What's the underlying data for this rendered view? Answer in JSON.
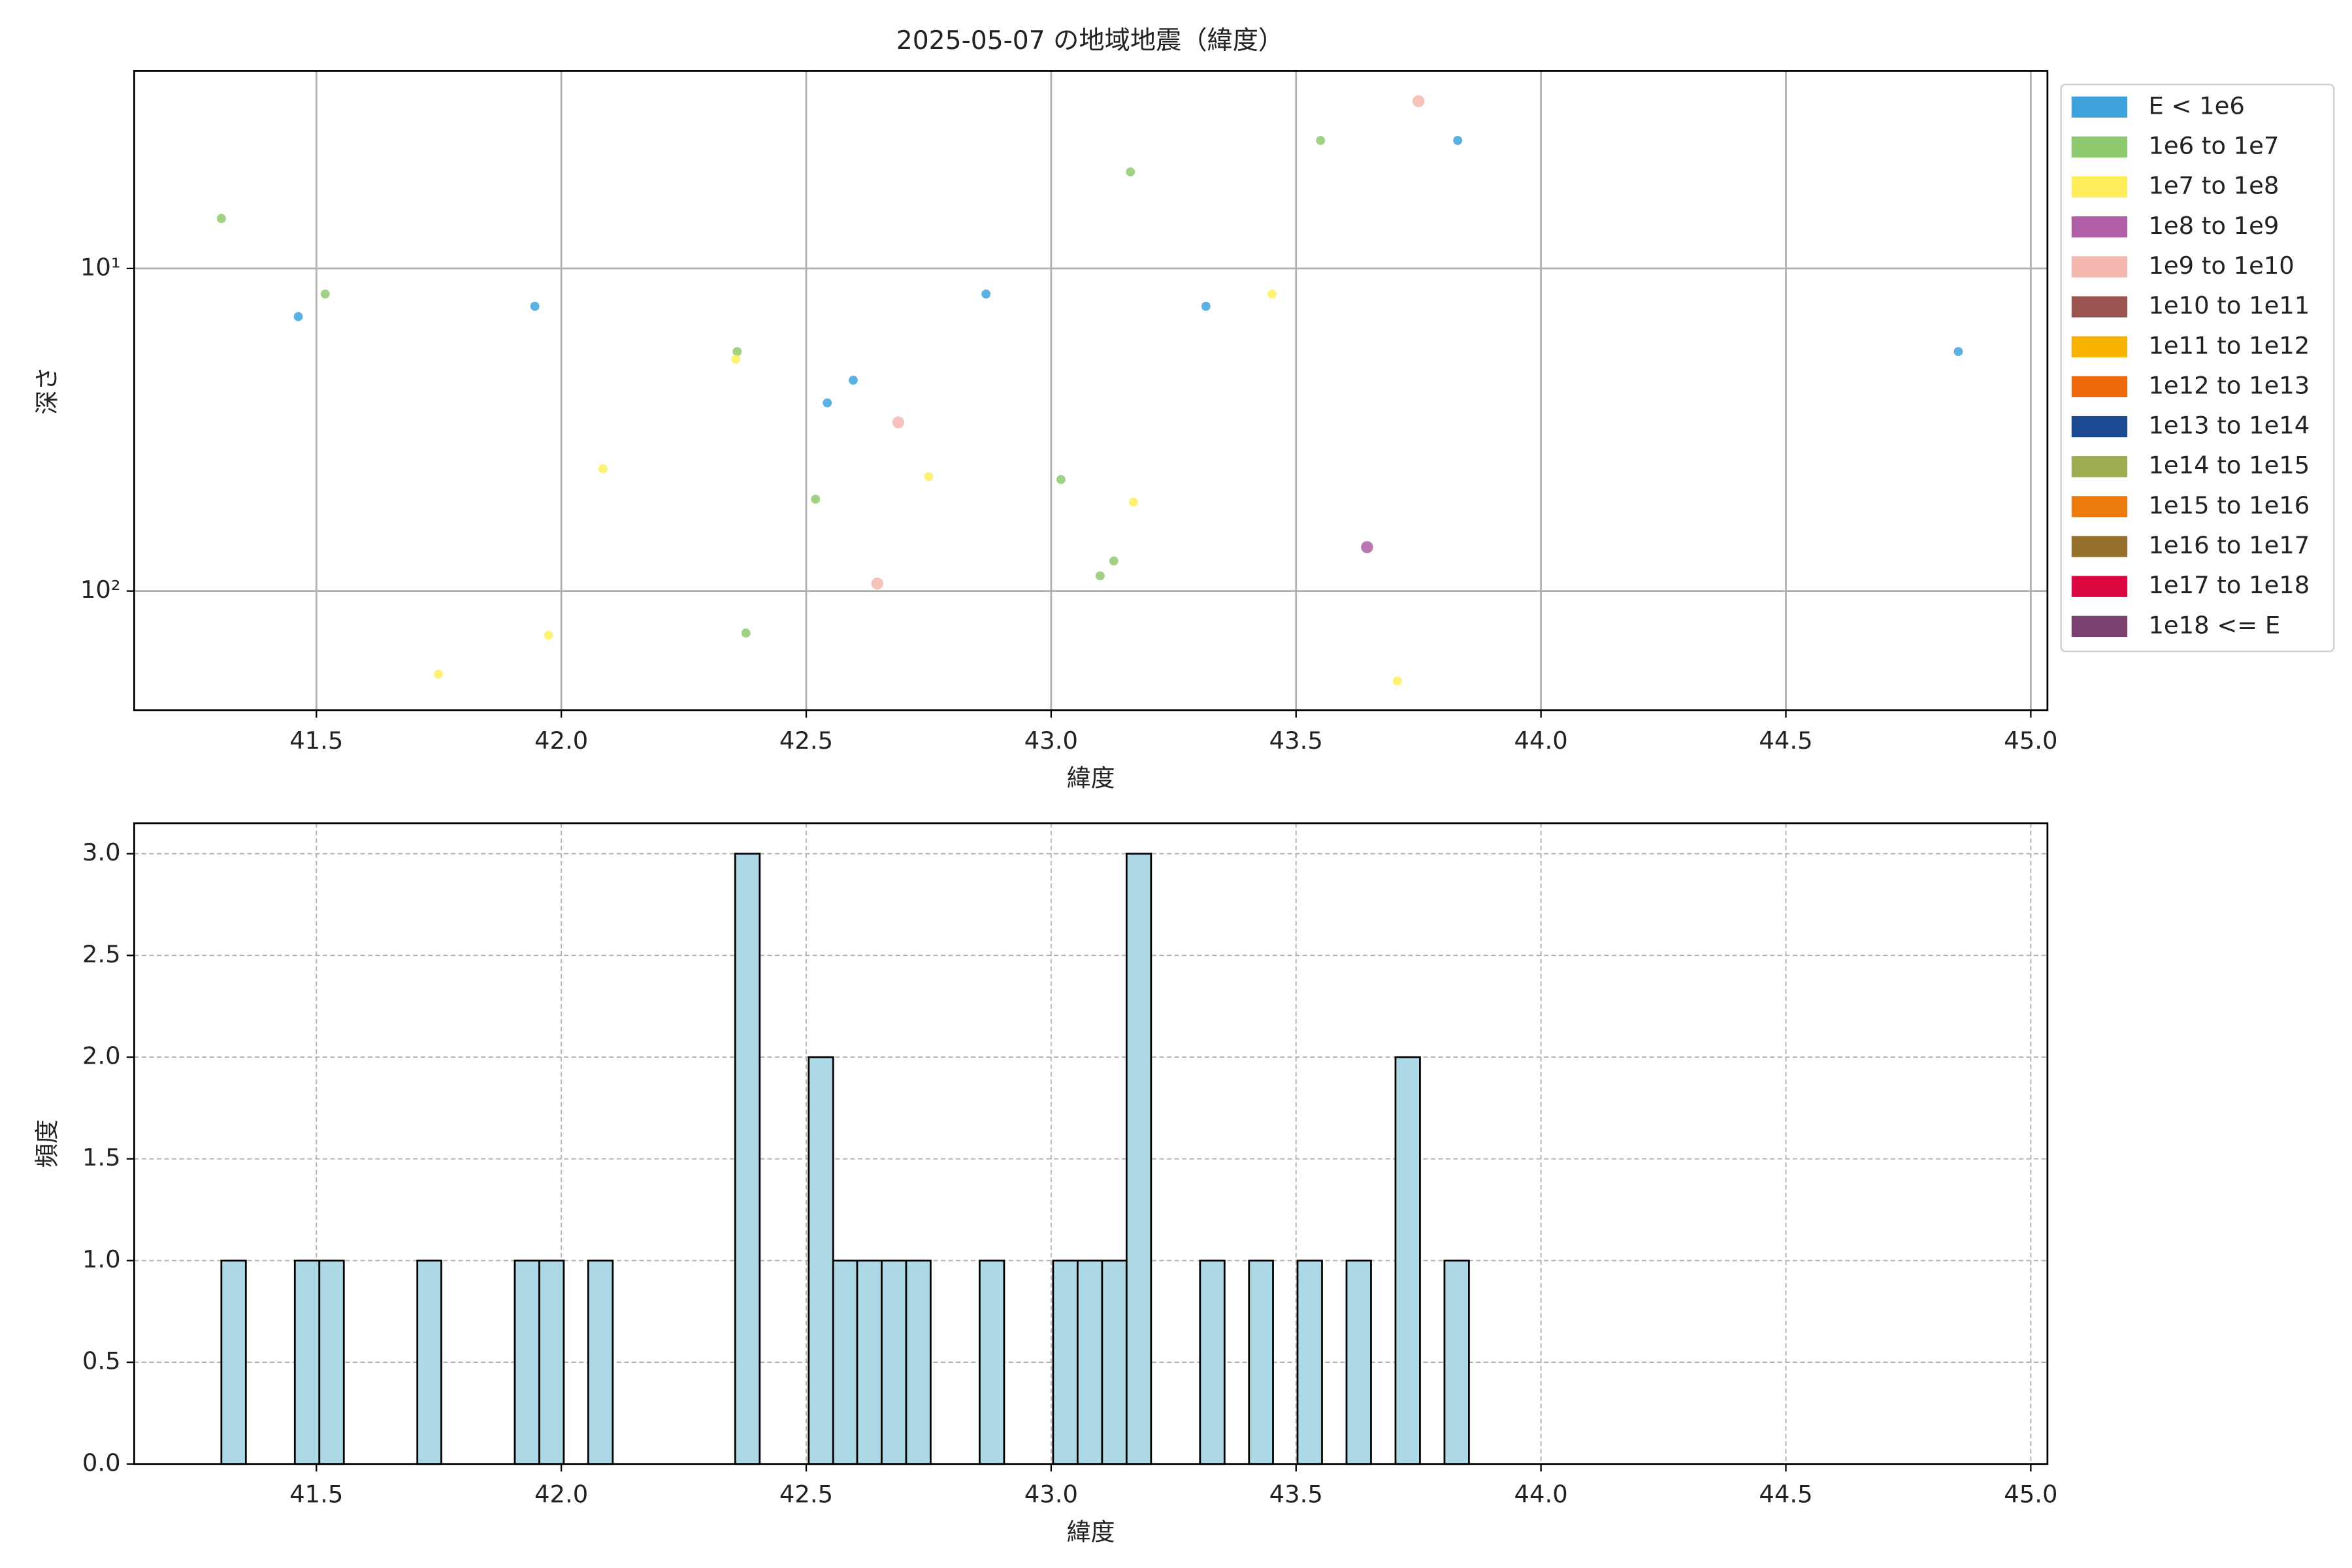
{
  "chart_data": [
    {
      "type": "scatter",
      "title": "2025-05-07 の地域地震（緯度）",
      "xlabel": "緯度",
      "ylabel": "深さ",
      "xlim": [
        41.128,
        45.034
      ],
      "xticks": [
        41.5,
        42.0,
        42.5,
        43.0,
        43.5,
        44.0,
        44.5,
        45.0
      ],
      "xtick_labels": [
        "41.5",
        "42.0",
        "42.5",
        "43.0",
        "43.5",
        "44.0",
        "44.5",
        "45.0"
      ],
      "yscale": "log",
      "yinvert": true,
      "ylim": [
        2.44,
        234
      ],
      "yticks": [
        {
          "value": 10,
          "label": "10¹"
        },
        {
          "value": 100,
          "label": "10²"
        }
      ],
      "grid": true,
      "legend": "outside right",
      "series": [
        {
          "name": "E < 1e6",
          "color": "#3ea3dd",
          "x": [
            41.463,
            41.946,
            42.543,
            42.596,
            42.867,
            43.316,
            43.83,
            44.852
          ],
          "values": [
            14.1,
            13.1,
            26.1,
            22.2,
            12.0,
            13.1,
            4.01,
            18.1
          ]
        },
        {
          "name": "1e6 to 1e7",
          "color": "#8fc96f",
          "x": [
            41.306,
            41.518,
            42.359,
            42.377,
            42.519,
            43.02,
            43.1,
            43.128,
            43.162,
            43.55
          ],
          "values": [
            7.0,
            12.0,
            18.1,
            135,
            51.9,
            45.1,
            89.7,
            80.7,
            5.02,
            4.01
          ]
        },
        {
          "name": "1e7 to 1e8",
          "color": "#ffee5a",
          "x": [
            42.356,
            42.085,
            41.749,
            41.974,
            42.75,
            43.168,
            43.451,
            43.707
          ],
          "values": [
            19.1,
            41.8,
            181,
            137,
            44.2,
            53.0,
            12.0,
            190
          ]
        },
        {
          "name": "1e8 to 1e9",
          "color": "#b05fa6",
          "x": [
            43.645
          ],
          "values": [
            73.1
          ]
        },
        {
          "name": "1e9 to 1e10",
          "color": "#f4b8b0",
          "x": [
            42.688,
            42.645,
            43.75
          ],
          "values": [
            30.0,
            94.8,
            3.03
          ]
        },
        {
          "name": "1e10 to 1e11",
          "color": "#9c5450",
          "x": [],
          "values": []
        },
        {
          "name": "1e11 to 1e12",
          "color": "#f7b300",
          "x": [],
          "values": []
        },
        {
          "name": "1e12 to 1e13",
          "color": "#ee6a0c",
          "x": [],
          "values": []
        },
        {
          "name": "1e13 to 1e14",
          "color": "#1b4a92",
          "x": [],
          "values": []
        },
        {
          "name": "1e14 to 1e15",
          "color": "#9fad52",
          "x": [],
          "values": []
        },
        {
          "name": "1e15 to 1e16",
          "color": "#ee7d0e",
          "x": [],
          "values": []
        },
        {
          "name": "1e16 to 1e17",
          "color": "#94702c",
          "x": [],
          "values": []
        },
        {
          "name": "1e17 to 1e18",
          "color": "#dc0741",
          "x": [],
          "values": []
        },
        {
          "name": "1e18 <= E",
          "color": "#7b4270",
          "x": [],
          "values": []
        }
      ]
    },
    {
      "type": "histogram",
      "xlabel": "緯度",
      "ylabel": "頻度",
      "color": "#add8e6",
      "xlim": [
        41.128,
        45.034
      ],
      "xticks": [
        41.5,
        42.0,
        42.5,
        43.0,
        43.5,
        44.0,
        44.5,
        45.0
      ],
      "xtick_labels": [
        "41.5",
        "42.0",
        "42.5",
        "43.0",
        "43.5",
        "44.0",
        "44.5",
        "45.0"
      ],
      "ylim": [
        0,
        3.15
      ],
      "yticks": [
        {
          "value": 0,
          "label": "0.0"
        },
        {
          "value": 0.5,
          "label": "0.5"
        },
        {
          "value": 1,
          "label": "1.0"
        },
        {
          "value": 1.5,
          "label": "1.5"
        },
        {
          "value": 2,
          "label": "2.0"
        },
        {
          "value": 2.5,
          "label": "2.5"
        },
        {
          "value": 3,
          "label": "3.0"
        }
      ],
      "grid": true,
      "bins": [
        41.306,
        41.356,
        41.406,
        41.456,
        41.506,
        41.556,
        41.606,
        41.656,
        41.706,
        41.755,
        41.805,
        41.855,
        41.905,
        41.955,
        42.005,
        42.055,
        42.105,
        42.155,
        42.205,
        42.255,
        42.305,
        42.355,
        42.405,
        42.455,
        42.505,
        42.555,
        42.604,
        42.654,
        42.704,
        42.754,
        42.804,
        42.854,
        42.904,
        42.954,
        43.004,
        43.054,
        43.104,
        43.154,
        43.204,
        43.254,
        43.304,
        43.354,
        43.404,
        43.453,
        43.503,
        43.553,
        43.603,
        43.653,
        43.703,
        43.753,
        43.803,
        43.853,
        43.903,
        43.953,
        44.003,
        44.053,
        44.103,
        44.153,
        44.203,
        44.252,
        44.302,
        44.352,
        44.402,
        44.452,
        44.502,
        44.552,
        44.602,
        44.652,
        44.702,
        44.752,
        44.802,
        44.852
      ],
      "values": [
        1,
        0,
        0,
        1,
        1,
        0,
        0,
        0,
        1,
        0,
        0,
        0,
        1,
        1,
        0,
        1,
        0,
        0,
        0,
        0,
        0,
        3,
        0,
        0,
        2,
        1,
        1,
        1,
        1,
        0,
        0,
        1,
        0,
        0,
        1,
        1,
        1,
        3,
        0,
        0,
        1,
        0,
        1,
        0,
        1,
        0,
        1,
        0,
        2,
        0,
        1,
        0,
        0,
        0,
        0,
        0,
        0,
        0,
        0,
        0,
        0,
        0,
        0,
        0,
        0,
        0,
        0,
        0,
        0,
        0,
        0
      ]
    }
  ]
}
